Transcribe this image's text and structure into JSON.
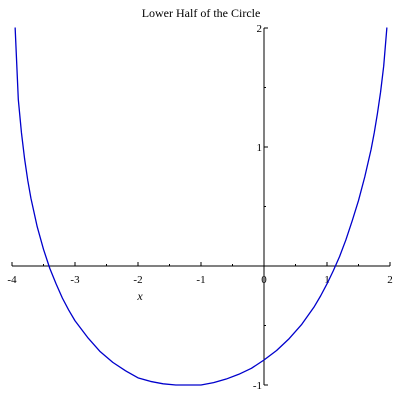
{
  "chart_data": {
    "type": "line",
    "title": "Lower Half of the Circle",
    "xlabel": "x",
    "ylabel": "",
    "xlim": [
      -4,
      2
    ],
    "ylim": [
      -1,
      2
    ],
    "grid": false,
    "x_ticks": [
      {
        "value": -4,
        "label": "-4"
      },
      {
        "value": -3,
        "label": "-3"
      },
      {
        "value": -2,
        "label": "-2"
      },
      {
        "value": -1,
        "label": "-1"
      },
      {
        "value": 0,
        "label": "0"
      },
      {
        "value": 1,
        "label": "1"
      },
      {
        "value": 2,
        "label": "2"
      }
    ],
    "y_ticks": [
      {
        "value": -1,
        "label": "-1"
      },
      {
        "value": 1,
        "label": "1"
      },
      {
        "value": 2,
        "label": "2"
      }
    ],
    "series": [
      {
        "color": "#0000cc",
        "x": [
          -3.95,
          -3.9,
          -3.85,
          -3.8,
          -3.75,
          -3.7,
          -3.6,
          -3.5,
          -3.4,
          -3.3,
          -3.2,
          -3.1,
          -3.0,
          -2.8,
          -2.6,
          -2.4,
          -2.2,
          -2.0,
          -1.8,
          -1.6,
          -1.4,
          -1.2,
          -1.0,
          -0.8,
          -0.6,
          -0.4,
          -0.2,
          0.0,
          0.2,
          0.4,
          0.6,
          0.8,
          0.9,
          1.0,
          1.1,
          1.2,
          1.3,
          1.4,
          1.5,
          1.6,
          1.7,
          1.75,
          1.8,
          1.85,
          1.9,
          1.95
        ],
        "y": [
          2.0,
          1.4,
          1.12,
          0.9,
          0.72,
          0.57,
          0.33,
          0.14,
          -0.02,
          -0.15,
          -0.27,
          -0.37,
          -0.46,
          -0.6,
          -0.72,
          -0.81,
          -0.88,
          -0.94,
          -0.97,
          -0.99,
          -1.0,
          -1.0,
          -1.0,
          -0.98,
          -0.95,
          -0.91,
          -0.86,
          -0.79,
          -0.71,
          -0.61,
          -0.49,
          -0.34,
          -0.25,
          -0.15,
          -0.04,
          0.08,
          0.22,
          0.38,
          0.55,
          0.75,
          0.98,
          1.12,
          1.28,
          1.46,
          1.68,
          2.0
        ]
      }
    ]
  }
}
